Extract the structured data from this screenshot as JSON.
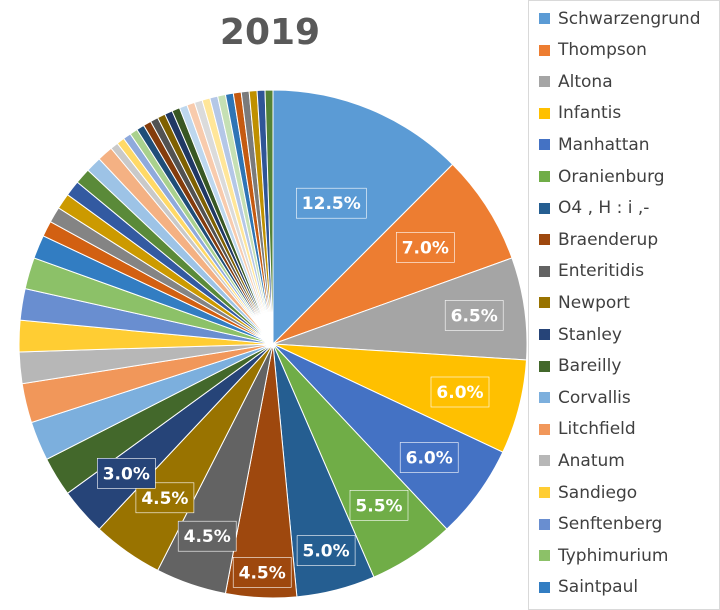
{
  "chart_data": {
    "type": "pie",
    "title": "2019",
    "legend_position": "right",
    "slices": [
      {
        "name": "Schwarzengrund",
        "value": 12.5,
        "label": "12.5%",
        "color": "#5B9BD5"
      },
      {
        "name": "Thompson",
        "value": 7.0,
        "label": "7.0%",
        "color": "#ED7D31"
      },
      {
        "name": "Altona",
        "value": 6.5,
        "label": "6.5%",
        "color": "#A5A5A5"
      },
      {
        "name": "Infantis",
        "value": 6.0,
        "label": "6.0%",
        "color": "#FFC000"
      },
      {
        "name": "Manhattan",
        "value": 6.0,
        "label": "6.0%",
        "color": "#4472C4"
      },
      {
        "name": "Oranienburg",
        "value": 5.5,
        "label": "5.5%",
        "color": "#70AD47"
      },
      {
        "name": "O4 , H : i ,-",
        "value": 5.0,
        "label": "5.0%",
        "color": "#255E91"
      },
      {
        "name": "Braenderup",
        "value": 4.5,
        "label": "4.5%",
        "color": "#9E480E"
      },
      {
        "name": "Enteritidis",
        "value": 4.5,
        "label": "4.5%",
        "color": "#636363"
      },
      {
        "name": "Newport",
        "value": 4.5,
        "label": "4.5%",
        "color": "#997300"
      },
      {
        "name": "Stanley",
        "value": 3.0,
        "label": "3.0%",
        "color": "#264478"
      },
      {
        "name": "Bareilly",
        "value": 2.5,
        "label": "",
        "color": "#43682B"
      },
      {
        "name": "Corvallis",
        "value": 2.5,
        "label": "",
        "color": "#7CAFDD"
      },
      {
        "name": "Litchfield",
        "value": 2.5,
        "label": "",
        "color": "#F1975A"
      },
      {
        "name": "Anatum",
        "value": 2.0,
        "label": "",
        "color": "#B7B7B7"
      },
      {
        "name": "Sandiego",
        "value": 2.0,
        "label": "",
        "color": "#FFCD33"
      },
      {
        "name": "Senftenberg",
        "value": 2.0,
        "label": "",
        "color": "#698ED0"
      },
      {
        "name": "Typhimurium",
        "value": 2.0,
        "label": "",
        "color": "#8CC168"
      },
      {
        "name": "Saintpaul",
        "value": 1.5,
        "label": "",
        "color": "#327DC2"
      },
      {
        "name": "",
        "value": 1.0,
        "label": "",
        "color": "#D26012"
      },
      {
        "name": "",
        "value": 1.0,
        "label": "",
        "color": "#848484"
      },
      {
        "name": "",
        "value": 1.0,
        "label": "",
        "color": "#CC9A00"
      },
      {
        "name": "",
        "value": 1.0,
        "label": "",
        "color": "#335AA1"
      },
      {
        "name": "",
        "value": 1.0,
        "label": "",
        "color": "#5A8A39"
      },
      {
        "name": "",
        "value": 1.0,
        "label": "",
        "color": "#9DC3E6"
      },
      {
        "name": "",
        "value": 1.0,
        "label": "",
        "color": "#F4B183"
      },
      {
        "name": "",
        "value": 0.5,
        "label": "",
        "color": "#C9C9C9"
      },
      {
        "name": "",
        "value": 0.5,
        "label": "",
        "color": "#FFD966"
      },
      {
        "name": "",
        "value": 0.5,
        "label": "",
        "color": "#8FAADC"
      },
      {
        "name": "",
        "value": 0.5,
        "label": "",
        "color": "#A9D18E"
      },
      {
        "name": "",
        "value": 0.5,
        "label": "",
        "color": "#1F4E79"
      },
      {
        "name": "",
        "value": 0.5,
        "label": "",
        "color": "#843C0C"
      },
      {
        "name": "",
        "value": 0.5,
        "label": "",
        "color": "#525252"
      },
      {
        "name": "",
        "value": 0.5,
        "label": "",
        "color": "#7F6000"
      },
      {
        "name": "",
        "value": 0.5,
        "label": "",
        "color": "#203864"
      },
      {
        "name": "",
        "value": 0.5,
        "label": "",
        "color": "#385723"
      },
      {
        "name": "",
        "value": 0.5,
        "label": "",
        "color": "#BDD7EE"
      },
      {
        "name": "",
        "value": 0.5,
        "label": "",
        "color": "#F8CBAD"
      },
      {
        "name": "",
        "value": 0.5,
        "label": "",
        "color": "#DBDBDB"
      },
      {
        "name": "",
        "value": 0.5,
        "label": "",
        "color": "#FFE699"
      },
      {
        "name": "",
        "value": 0.5,
        "label": "",
        "color": "#B4C7E7"
      },
      {
        "name": "",
        "value": 0.5,
        "label": "",
        "color": "#C5E0B4"
      },
      {
        "name": "",
        "value": 0.5,
        "label": "",
        "color": "#2E75B6"
      },
      {
        "name": "",
        "value": 0.5,
        "label": "",
        "color": "#C55A11"
      },
      {
        "name": "",
        "value": 0.5,
        "label": "",
        "color": "#7B7B7B"
      },
      {
        "name": "",
        "value": 0.5,
        "label": "",
        "color": "#BF9000"
      },
      {
        "name": "",
        "value": 0.5,
        "label": "",
        "color": "#2F5597"
      },
      {
        "name": "",
        "value": 0.5,
        "label": "",
        "color": "#548235"
      }
    ]
  }
}
